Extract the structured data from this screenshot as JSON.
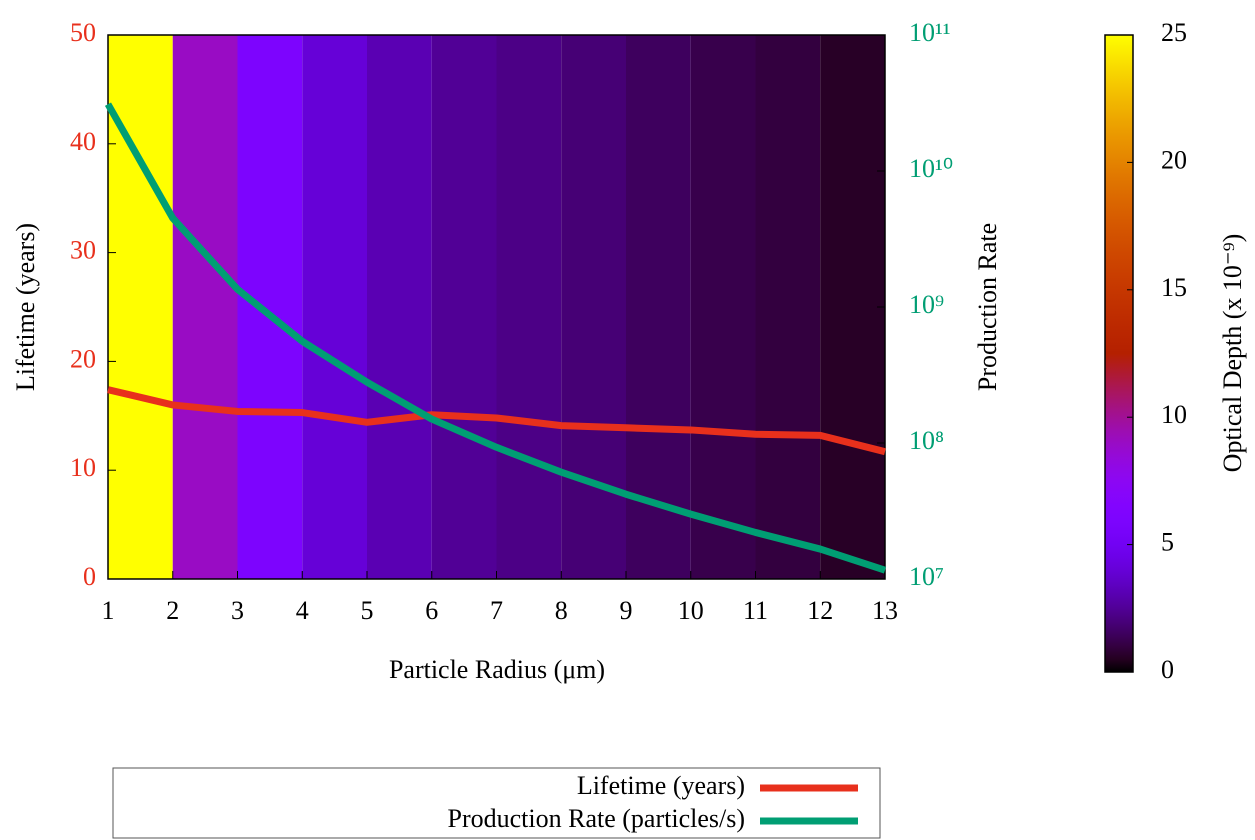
{
  "chart_data": {
    "type": "line",
    "x": [
      1,
      2,
      3,
      4,
      5,
      6,
      7,
      8,
      9,
      10,
      11,
      12,
      13
    ],
    "xlim": [
      1,
      13
    ],
    "xticks": [
      1,
      2,
      3,
      4,
      5,
      6,
      7,
      8,
      9,
      10,
      11,
      12,
      13
    ],
    "xlabel": "Particle Radius (μm)",
    "ylabel": "Lifetime (years)",
    "ylim": [
      0,
      50
    ],
    "yticks": [
      0,
      10,
      20,
      30,
      40,
      50
    ],
    "y2label": "Production Rate",
    "y2lim": [
      10000000,
      100000000000
    ],
    "y2scale": "log",
    "y2ticks": [
      {
        "value": 10000000,
        "label": "10⁷"
      },
      {
        "value": 100000000,
        "label": "10⁸"
      },
      {
        "value": 1000000000,
        "label": "10⁹"
      },
      {
        "value": 10000000000,
        "label": "10¹⁰"
      },
      {
        "value": 100000000000,
        "label": "10¹¹"
      }
    ],
    "series": [
      {
        "name": "Lifetime (years)",
        "color": "#e8301c",
        "values": [
          17.4,
          16.0,
          15.4,
          15.3,
          14.4,
          15.1,
          14.8,
          14.1,
          13.9,
          13.7,
          13.3,
          13.2,
          11.7
        ]
      },
      {
        "name": "Production Rate (particles/s)",
        "color": "#009e73",
        "axis": "y2",
        "values": [
          31000000000,
          4500000000,
          1350000000,
          560000000,
          280000000,
          150000000,
          93000000,
          61000000,
          42000000,
          30000000,
          22000000,
          16600000,
          11600000
        ]
      }
    ],
    "optical_depth": [
      25,
      9,
      6,
      4,
      3.1,
      2.5,
      2.2,
      1.9,
      1.5,
      1.2,
      1.0,
      0.6
    ],
    "cblabel": "Optical Depth (x 10⁻⁹)",
    "cblim": [
      0,
      25
    ],
    "cbticks": [
      0,
      5,
      10,
      15,
      20,
      25
    ],
    "legend": "bottom"
  }
}
